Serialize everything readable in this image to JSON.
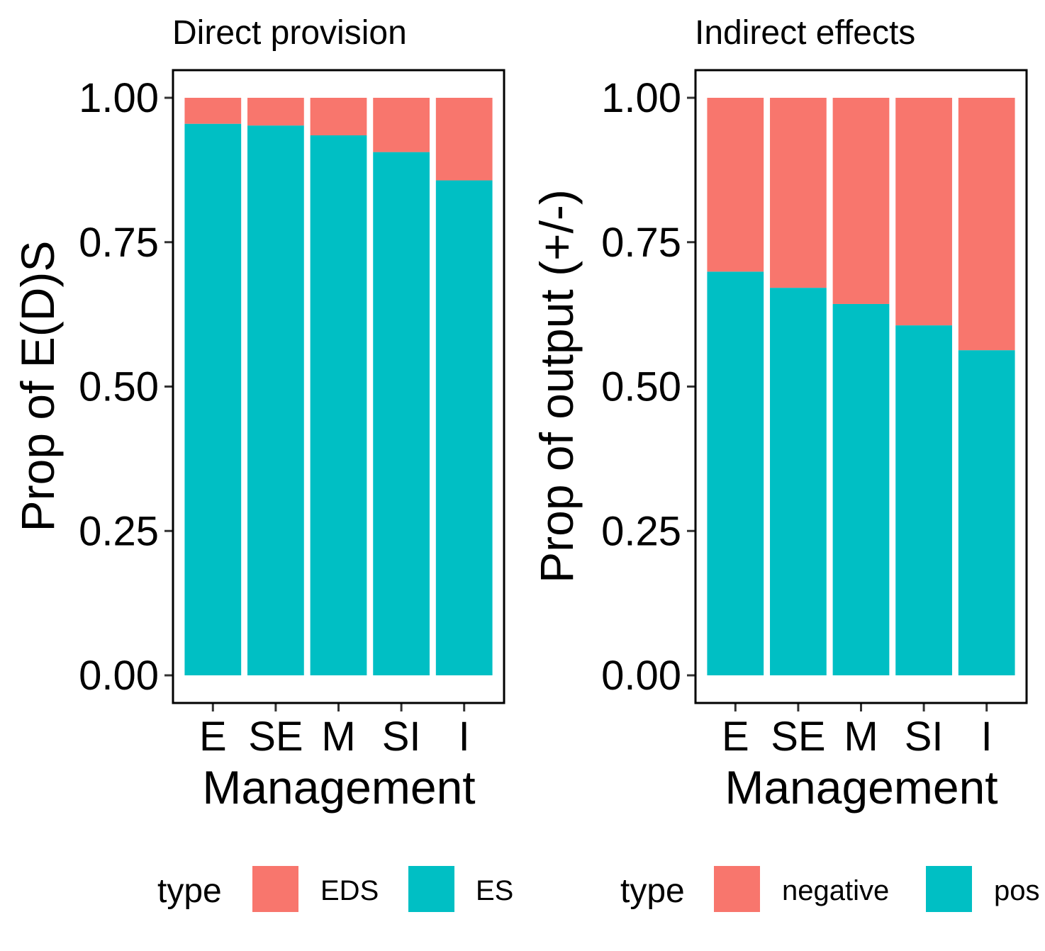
{
  "figure": {
    "panels": [
      {
        "title": "Direct provision",
        "xlabel": "Management",
        "ylabel": "Prop of E(D)S",
        "legend": {
          "title": "type",
          "items": [
            {
              "label": "EDS",
              "color": "#F8766D"
            },
            {
              "label": "ES",
              "color": "#00BFC4"
            }
          ]
        }
      },
      {
        "title": "Indirect effects",
        "xlabel": "Management",
        "ylabel": "Prop of output (+/-)",
        "legend": {
          "title": "type",
          "items": [
            {
              "label": "negative",
              "color": "#F8766D"
            },
            {
              "label": "pos",
              "color": "#00BFC4"
            }
          ]
        }
      }
    ]
  },
  "chart_data": [
    {
      "type": "bar",
      "stacked": true,
      "title": "Direct provision",
      "xlabel": "Management",
      "ylabel": "Prop of E(D)S",
      "categories": [
        "E",
        "SE",
        "M",
        "SI",
        "I"
      ],
      "ylim": [
        0,
        1
      ],
      "yticks": [
        "0.00",
        "0.25",
        "0.50",
        "0.75",
        "1.00"
      ],
      "series": [
        {
          "name": "ES",
          "color": "#00BFC4",
          "values": [
            0.955,
            0.952,
            0.935,
            0.906,
            0.857
          ]
        },
        {
          "name": "EDS",
          "color": "#F8766D",
          "values": [
            0.045,
            0.048,
            0.065,
            0.094,
            0.143
          ]
        }
      ],
      "legend_position": "bottom",
      "grid": false
    },
    {
      "type": "bar",
      "stacked": true,
      "title": "Indirect effects",
      "xlabel": "Management",
      "ylabel": "Prop of output (+/-)",
      "categories": [
        "E",
        "SE",
        "M",
        "SI",
        "I"
      ],
      "ylim": [
        0,
        1
      ],
      "yticks": [
        "0.00",
        "0.25",
        "0.50",
        "0.75",
        "1.00"
      ],
      "series": [
        {
          "name": "pos",
          "color": "#00BFC4",
          "values": [
            0.699,
            0.671,
            0.643,
            0.606,
            0.563
          ]
        },
        {
          "name": "negative",
          "color": "#F8766D",
          "values": [
            0.301,
            0.329,
            0.357,
            0.394,
            0.437
          ]
        }
      ],
      "legend_position": "bottom",
      "grid": false
    }
  ]
}
